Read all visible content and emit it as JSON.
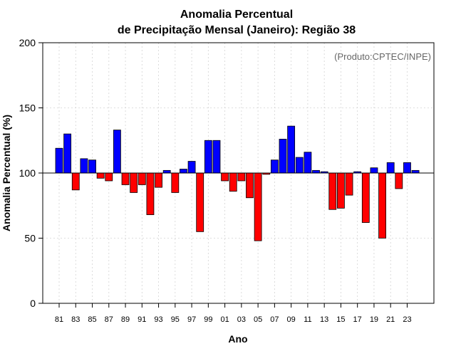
{
  "chart_data": {
    "type": "bar",
    "title_line1": "Anomalia Percentual",
    "title_line2": "de Precipitação Mensal (Janeiro): Região 38",
    "xlabel": "Ano",
    "ylabel": "Anomalia Percentual (%)",
    "credit": "(Produto:CPTEC/INPE)",
    "ylim": [
      0,
      200
    ],
    "yticks": [
      0,
      50,
      100,
      150,
      200
    ],
    "baseline": 100,
    "colors": {
      "above": "#0000ff",
      "below": "#ff0000",
      "border": "#000000",
      "grid": "#d3d3d3"
    },
    "categories": [
      "81",
      "82",
      "83",
      "84",
      "85",
      "86",
      "87",
      "88",
      "89",
      "90",
      "91",
      "92",
      "93",
      "94",
      "95",
      "96",
      "97",
      "98",
      "99",
      "00",
      "01",
      "02",
      "03",
      "04",
      "05",
      "06",
      "07",
      "08",
      "09",
      "10",
      "11",
      "12",
      "13",
      "14",
      "15",
      "16",
      "17",
      "18",
      "19",
      "20",
      "21",
      "22",
      "23",
      "24"
    ],
    "xtick_labels": [
      "81",
      "83",
      "85",
      "87",
      "89",
      "91",
      "93",
      "95",
      "97",
      "99",
      "01",
      "03",
      "05",
      "07",
      "09",
      "11",
      "13",
      "15",
      "17",
      "19",
      "21",
      "23"
    ],
    "values": [
      119,
      130,
      87,
      111,
      110,
      96,
      94,
      133,
      91,
      85,
      91,
      68,
      89,
      102,
      85,
      103,
      109,
      55,
      125,
      125,
      94,
      86,
      94,
      81,
      48,
      99,
      110,
      126,
      136,
      112,
      116,
      102,
      101,
      72,
      73,
      83,
      101,
      62,
      104,
      50,
      108,
      88,
      108,
      102
    ]
  }
}
